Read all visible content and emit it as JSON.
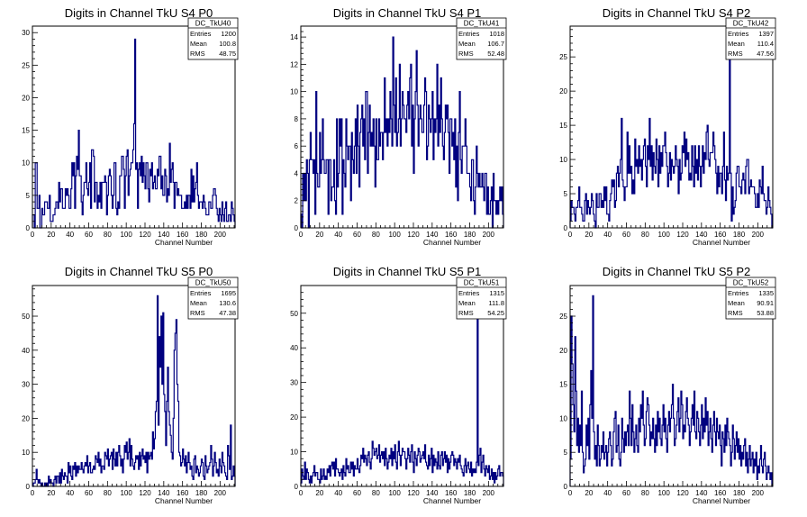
{
  "colors": {
    "hist": "#000080",
    "frame": "#000000",
    "background": "#ffffff"
  },
  "chart_data": [
    {
      "type": "bar",
      "title": "Digits in Channel TkU S4 P0",
      "xlabel": "Channel Number",
      "ylabel": "",
      "xlim": [
        0,
        216
      ],
      "ylim": [
        0,
        31
      ],
      "xticks": [
        0,
        20,
        40,
        60,
        80,
        100,
        120,
        140,
        160,
        180,
        200
      ],
      "yticks": [
        0,
        5,
        10,
        15,
        20,
        25,
        30
      ],
      "stats": {
        "name": "DC_TkU40",
        "rows": [
          [
            "Entries",
            "1200"
          ],
          [
            "Mean",
            "100.8"
          ],
          [
            "RMS",
            "48.75"
          ]
        ]
      },
      "values": [
        2,
        2,
        0,
        10,
        10,
        3,
        3,
        5,
        0,
        0,
        3,
        2,
        2,
        4,
        4,
        4,
        3,
        3,
        5,
        1,
        1,
        1,
        2,
        2,
        3,
        4,
        4,
        3,
        7,
        4,
        6,
        6,
        3,
        3,
        3,
        6,
        5,
        6,
        5,
        3,
        3,
        6,
        10,
        8,
        10,
        3,
        8,
        11,
        9,
        15,
        8,
        8,
        4,
        2,
        5,
        7,
        7,
        10,
        6,
        5,
        7,
        10,
        3,
        12,
        12,
        11,
        4,
        7,
        7,
        3,
        5,
        4,
        7,
        3,
        7,
        7,
        7,
        8,
        7,
        2,
        5,
        8,
        9,
        8,
        5,
        3,
        5,
        10,
        10,
        3,
        2,
        4,
        3,
        8,
        8,
        11,
        11,
        9,
        3,
        8,
        11,
        12,
        5,
        8,
        9,
        10,
        10,
        12,
        16,
        29,
        9,
        10,
        3,
        9,
        10,
        8,
        11,
        7,
        10,
        8,
        6,
        10,
        10,
        6,
        4,
        9,
        8,
        10,
        6,
        7,
        8,
        6,
        6,
        9,
        8,
        11,
        11,
        6,
        8,
        5,
        5,
        9,
        8,
        4,
        6,
        5,
        13,
        7,
        9,
        10,
        7,
        3,
        7,
        7,
        5,
        6,
        5,
        5,
        5,
        3,
        3,
        3,
        4,
        3,
        5,
        3,
        5,
        5,
        3,
        9,
        4,
        8,
        4,
        6,
        7,
        10,
        5,
        3,
        4,
        4,
        4,
        3,
        5,
        4,
        3,
        2,
        2,
        2,
        4,
        4,
        3,
        3,
        5,
        6,
        6,
        5,
        3,
        2,
        1,
        3,
        2,
        1,
        4,
        2,
        1,
        3,
        4,
        1,
        1,
        2,
        2,
        1,
        4,
        3,
        2,
        1
      ]
    },
    {
      "type": "bar",
      "title": "Digits in Channel TkU S4 P1",
      "xlabel": "Channel Number",
      "ylabel": "",
      "xlim": [
        0,
        216
      ],
      "ylim": [
        0,
        14.8
      ],
      "xticks": [
        0,
        20,
        40,
        60,
        80,
        100,
        120,
        140,
        160,
        180,
        200
      ],
      "yticks": [
        0,
        2,
        4,
        6,
        8,
        10,
        12,
        14
      ],
      "stats": {
        "name": "DC_TkU41",
        "rows": [
          [
            "Entries",
            "1018"
          ],
          [
            "Mean",
            "106.7"
          ],
          [
            "RMS",
            "52.48"
          ]
        ]
      },
      "values": [
        1,
        0,
        4,
        2,
        4,
        2,
        5,
        4,
        0,
        5,
        7,
        5,
        5,
        4,
        5,
        1,
        10,
        4,
        3,
        3,
        7,
        4,
        5,
        8,
        5,
        4,
        4,
        5,
        5,
        1,
        5,
        5,
        2,
        3,
        3,
        5,
        2,
        1,
        8,
        3,
        4,
        8,
        6,
        8,
        1,
        5,
        4,
        3,
        8,
        6,
        5,
        6,
        6,
        2,
        7,
        5,
        4,
        6,
        8,
        4,
        9,
        6,
        3,
        7,
        8,
        9,
        6,
        8,
        5,
        10,
        10,
        4,
        7,
        9,
        6,
        7,
        6,
        8,
        6,
        3,
        8,
        5,
        5,
        8,
        6,
        7,
        7,
        5,
        7,
        11,
        7,
        8,
        6,
        8,
        7,
        10,
        8,
        6,
        14,
        9,
        7,
        11,
        6,
        7,
        8,
        12,
        6,
        8,
        10,
        9,
        8,
        8,
        7,
        9,
        10,
        8,
        11,
        12,
        6,
        9,
        4,
        8,
        10,
        13,
        9,
        6,
        8,
        9,
        8,
        7,
        7,
        9,
        11,
        10,
        5,
        6,
        9,
        8,
        7,
        8,
        10,
        5,
        8,
        7,
        8,
        12,
        6,
        9,
        7,
        11,
        8,
        6,
        5,
        7,
        9,
        8,
        9,
        7,
        4,
        8,
        8,
        6,
        7,
        5,
        8,
        3,
        6,
        2,
        7,
        10,
        5,
        4,
        6,
        6,
        6,
        8,
        6,
        4,
        4,
        4,
        3,
        2,
        5,
        5,
        2,
        1,
        3,
        6,
        4,
        3,
        4,
        3,
        3,
        4,
        3,
        2,
        4,
        4,
        1,
        3,
        1,
        1,
        2,
        3,
        0,
        4,
        2,
        2,
        1,
        2,
        1,
        2,
        3,
        2,
        3,
        1
      ]
    },
    {
      "type": "bar",
      "title": "Digits in Channel TkU S4 P2",
      "xlabel": "Channel Number",
      "ylabel": "",
      "xlim": [
        0,
        216
      ],
      "ylim": [
        0,
        29.5
      ],
      "xticks": [
        0,
        20,
        40,
        60,
        80,
        100,
        120,
        140,
        160,
        180,
        200
      ],
      "yticks": [
        0,
        5,
        10,
        15,
        20,
        25
      ],
      "stats": {
        "name": "DC_TkU42",
        "rows": [
          [
            "Entries",
            "1397"
          ],
          [
            "Mean",
            "110.4"
          ],
          [
            "RMS",
            "47.56"
          ]
        ]
      },
      "values": [
        1,
        4,
        3,
        3,
        2,
        1,
        3,
        3,
        4,
        6,
        3,
        3,
        2,
        1,
        1,
        4,
        5,
        2,
        4,
        3,
        2,
        3,
        5,
        4,
        2,
        1,
        0,
        5,
        3,
        3,
        5,
        5,
        3,
        4,
        3,
        6,
        4,
        6,
        2,
        2,
        1,
        4,
        5,
        7,
        6,
        7,
        3,
        4,
        8,
        9,
        6,
        8,
        10,
        16,
        7,
        6,
        4,
        6,
        6,
        14,
        8,
        12,
        8,
        9,
        5,
        7,
        5,
        13,
        9,
        10,
        8,
        12,
        9,
        10,
        7,
        10,
        12,
        13,
        9,
        6,
        12,
        10,
        16,
        9,
        12,
        7,
        11,
        9,
        8,
        13,
        10,
        6,
        12,
        8,
        11,
        9,
        12,
        12,
        14,
        11,
        9,
        6,
        8,
        11,
        7,
        10,
        9,
        8,
        9,
        12,
        10,
        9,
        5,
        10,
        7,
        8,
        12,
        11,
        14,
        9,
        13,
        10,
        11,
        7,
        8,
        7,
        12,
        9,
        6,
        12,
        8,
        10,
        7,
        12,
        9,
        6,
        9,
        12,
        8,
        11,
        10,
        14,
        15,
        10,
        9,
        11,
        11,
        11,
        14,
        12,
        10,
        8,
        5,
        9,
        6,
        8,
        8,
        5,
        9,
        14,
        7,
        4,
        9,
        7,
        8,
        28,
        8,
        1,
        6,
        2,
        3,
        4,
        8,
        9,
        9,
        6,
        6,
        5,
        7,
        8,
        7,
        5,
        9,
        10,
        10,
        5,
        6,
        7,
        6,
        6,
        6,
        5,
        3,
        3,
        5,
        3,
        7,
        6,
        5,
        9,
        5,
        4,
        4,
        2,
        3,
        6,
        4,
        3,
        2,
        0
      ]
    },
    {
      "type": "bar",
      "title": "Digits in Channel TkU S5 P0",
      "xlabel": "Channel Number",
      "ylabel": "",
      "xlim": [
        0,
        216
      ],
      "ylim": [
        0,
        59
      ],
      "xticks": [
        0,
        20,
        40,
        60,
        80,
        100,
        120,
        140,
        160,
        180,
        200
      ],
      "yticks": [
        0,
        10,
        20,
        30,
        40,
        50
      ],
      "stats": {
        "name": "DC_TkU50",
        "rows": [
          [
            "Entries",
            "1695"
          ],
          [
            "Mean",
            "130.6"
          ],
          [
            "RMS",
            "47.38"
          ]
        ]
      },
      "values": [
        0,
        1,
        1,
        2,
        5,
        2,
        1,
        2,
        1,
        0,
        1,
        0,
        0,
        1,
        0,
        1,
        0,
        3,
        1,
        2,
        1,
        1,
        0,
        2,
        3,
        1,
        3,
        3,
        1,
        4,
        1,
        5,
        3,
        2,
        4,
        3,
        3,
        1,
        7,
        4,
        6,
        3,
        2,
        6,
        5,
        7,
        3,
        6,
        4,
        6,
        5,
        5,
        7,
        5,
        4,
        6,
        7,
        6,
        9,
        4,
        6,
        7,
        4,
        4,
        5,
        6,
        5,
        9,
        8,
        7,
        10,
        6,
        8,
        4,
        6,
        6,
        5,
        10,
        9,
        8,
        11,
        6,
        8,
        9,
        10,
        5,
        11,
        8,
        6,
        10,
        6,
        10,
        12,
        9,
        6,
        8,
        4,
        8,
        12,
        10,
        13,
        8,
        10,
        14,
        6,
        12,
        8,
        6,
        5,
        7,
        9,
        8,
        9,
        5,
        10,
        6,
        9,
        11,
        8,
        9,
        7,
        10,
        4,
        10,
        8,
        9,
        10,
        8,
        16,
        11,
        14,
        22,
        25,
        56,
        18,
        44,
        35,
        50,
        30,
        51,
        27,
        22,
        12,
        25,
        35,
        22,
        18,
        15,
        10,
        8,
        20,
        40,
        45,
        49,
        30,
        25,
        10,
        9,
        6,
        7,
        11,
        8,
        6,
        9,
        4,
        7,
        10,
        7,
        5,
        6,
        3,
        2,
        8,
        9,
        4,
        6,
        5,
        3,
        4,
        6,
        8,
        7,
        3,
        2,
        9,
        6,
        4,
        5,
        6,
        7,
        12,
        8,
        3,
        6,
        10,
        7,
        4,
        5,
        3,
        8,
        6,
        4,
        10,
        7,
        6,
        4,
        3,
        2,
        12,
        9,
        5,
        18,
        2,
        3,
        6,
        3
      ]
    },
    {
      "type": "bar",
      "title": "Digits in Channel TkU S5 P1",
      "xlabel": "Channel Number",
      "ylabel": "",
      "xlim": [
        0,
        216
      ],
      "ylim": [
        0,
        58
      ],
      "xticks": [
        0,
        20,
        40,
        60,
        80,
        100,
        120,
        140,
        160,
        180,
        200
      ],
      "yticks": [
        0,
        10,
        20,
        30,
        40,
        50
      ],
      "stats": {
        "name": "DC_TkU51",
        "rows": [
          [
            "Entries",
            "1315"
          ],
          [
            "Mean",
            "111.8"
          ],
          [
            "RMS",
            "54.25"
          ]
        ]
      },
      "values": [
        1,
        5,
        3,
        2,
        7,
        2,
        5,
        4,
        2,
        1,
        3,
        1,
        3,
        4,
        6,
        3,
        4,
        4,
        2,
        2,
        1,
        5,
        2,
        3,
        5,
        2,
        3,
        2,
        5,
        4,
        6,
        3,
        6,
        7,
        5,
        7,
        3,
        8,
        5,
        5,
        4,
        3,
        4,
        5,
        2,
        6,
        4,
        3,
        8,
        5,
        6,
        4,
        4,
        7,
        5,
        7,
        3,
        6,
        5,
        5,
        8,
        5,
        4,
        6,
        9,
        8,
        11,
        7,
        9,
        8,
        6,
        9,
        10,
        7,
        5,
        8,
        13,
        11,
        9,
        10,
        11,
        8,
        9,
        12,
        7,
        9,
        10,
        8,
        10,
        6,
        11,
        8,
        5,
        7,
        9,
        8,
        11,
        6,
        10,
        8,
        12,
        7,
        5,
        10,
        13,
        9,
        6,
        9,
        11,
        10,
        10,
        8,
        5,
        8,
        11,
        9,
        7,
        10,
        12,
        7,
        4,
        10,
        8,
        6,
        9,
        11,
        10,
        7,
        8,
        9,
        10,
        8,
        12,
        7,
        6,
        5,
        9,
        6,
        8,
        11,
        4,
        9,
        6,
        8,
        7,
        5,
        10,
        6,
        5,
        9,
        10,
        6,
        8,
        10,
        7,
        9,
        4,
        8,
        5,
        7,
        9,
        10,
        9,
        6,
        8,
        7,
        5,
        8,
        7,
        9,
        6,
        5,
        4,
        3,
        6,
        8,
        4,
        6,
        7,
        5,
        4,
        7,
        3,
        5,
        4,
        5,
        4,
        7,
        50,
        6,
        9,
        11,
        4,
        7,
        9,
        5,
        3,
        6,
        5,
        4,
        6,
        2,
        3,
        5,
        2,
        4,
        1,
        4,
        2,
        3,
        5,
        6,
        3,
        4,
        4,
        3
      ]
    },
    {
      "type": "bar",
      "title": "Digits in Channel TkU S5 P2",
      "xlabel": "Channel Number",
      "ylabel": "",
      "xlim": [
        0,
        216
      ],
      "ylim": [
        0,
        29.5
      ],
      "xticks": [
        0,
        20,
        40,
        60,
        80,
        100,
        120,
        140,
        160,
        180,
        200
      ],
      "yticks": [
        0,
        5,
        10,
        15,
        20,
        25
      ],
      "stats": {
        "name": "DC_TkU52",
        "rows": [
          [
            "Entries",
            "1335"
          ],
          [
            "Mean",
            "90.91"
          ],
          [
            "RMS",
            "53.88"
          ]
        ]
      },
      "values": [
        4,
        25,
        18,
        12,
        8,
        22,
        14,
        6,
        10,
        5,
        9,
        6,
        14,
        5,
        2,
        3,
        4,
        9,
        6,
        10,
        4,
        12,
        17,
        10,
        28,
        8,
        4,
        6,
        3,
        9,
        6,
        3,
        4,
        6,
        5,
        8,
        4,
        5,
        6,
        3,
        5,
        7,
        8,
        6,
        3,
        4,
        8,
        10,
        11,
        5,
        6,
        9,
        4,
        3,
        5,
        10,
        7,
        5,
        8,
        6,
        8,
        9,
        6,
        14,
        10,
        6,
        12,
        8,
        5,
        7,
        9,
        6,
        5,
        10,
        8,
        12,
        10,
        14,
        9,
        6,
        7,
        11,
        13,
        12,
        9,
        6,
        8,
        7,
        10,
        7,
        5,
        9,
        6,
        11,
        8,
        10,
        7,
        6,
        9,
        12,
        8,
        10,
        7,
        5,
        9,
        11,
        8,
        10,
        12,
        15,
        10,
        6,
        7,
        9,
        11,
        13,
        8,
        10,
        14,
        12,
        7,
        9,
        8,
        11,
        13,
        10,
        9,
        6,
        8,
        10,
        12,
        9,
        14,
        8,
        7,
        11,
        10,
        8,
        6,
        9,
        12,
        7,
        10,
        8,
        13,
        9,
        11,
        6,
        8,
        10,
        7,
        5,
        9,
        11,
        8,
        6,
        10,
        8,
        7,
        9,
        6,
        3,
        8,
        7,
        5,
        9,
        6,
        10,
        8,
        7,
        6,
        3,
        5,
        9,
        7,
        4,
        6,
        8,
        5,
        7,
        4,
        6,
        3,
        5,
        4,
        6,
        7,
        3,
        5,
        2,
        4,
        6,
        3,
        4,
        5,
        2,
        4,
        3,
        5,
        1,
        3,
        2,
        4,
        6,
        3,
        2,
        4,
        5,
        3,
        1,
        2,
        3,
        2,
        1,
        2,
        0
      ]
    }
  ]
}
